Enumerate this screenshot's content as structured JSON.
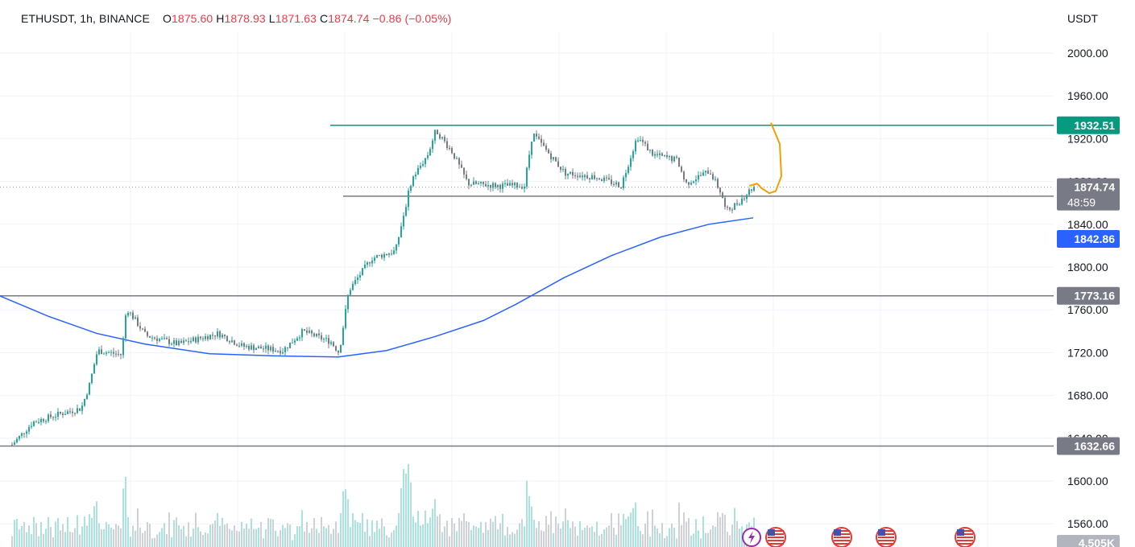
{
  "header": {
    "symbol": "ETHUSDT",
    "interval": "1h",
    "exchange": "BINANCE",
    "open_label": "O",
    "open": "1875.60",
    "high_label": "H",
    "high": "1878.93",
    "low_label": "L",
    "low": "1871.63",
    "close_label": "C",
    "close": "1874.74",
    "change": "−0.86 (−0.05%)"
  },
  "axis": {
    "currency": "USDT"
  },
  "chart_data": {
    "type": "candlestick",
    "price_axis": {
      "ylim": [
        1540,
        2020
      ],
      "ticks": [
        "2000.00",
        "1960.00",
        "1920.00",
        "1880.00",
        "1840.00",
        "1800.00",
        "1760.00",
        "1720.00",
        "1680.00",
        "1640.00",
        "1600.00",
        "1560.00"
      ]
    },
    "horizontal_lines": [
      {
        "name": "resistance",
        "price": 1932.51,
        "label": "1932.51",
        "color": "#089981"
      },
      {
        "name": "range-support",
        "price": 1866.28,
        "label": "1866.28",
        "color": "#787b86"
      },
      {
        "name": "mid-support",
        "price": 1773.16,
        "label": "1773.16",
        "color": "#787b86"
      },
      {
        "name": "base-support",
        "price": 1632.66,
        "label": "1632.66",
        "color": "#787b86"
      }
    ],
    "last_price": {
      "price": 1874.74,
      "label": "1874.74",
      "countdown": "48:59",
      "color": "#787b86"
    },
    "moving_average": {
      "label": "1842.86",
      "color": "#2962ff",
      "points": [
        [
          0,
          1773
        ],
        [
          60,
          1754
        ],
        [
          120,
          1738
        ],
        [
          180,
          1728
        ],
        [
          260,
          1719
        ],
        [
          340,
          1717
        ],
        [
          420,
          1716
        ],
        [
          480,
          1722
        ],
        [
          540,
          1735
        ],
        [
          600,
          1750
        ],
        [
          640,
          1765
        ],
        [
          700,
          1790
        ],
        [
          760,
          1811
        ],
        [
          820,
          1828
        ],
        [
          880,
          1840
        ],
        [
          935,
          1846
        ]
      ]
    },
    "price_path": [
      [
        14,
        1634
      ],
      [
        40,
        1655
      ],
      [
        70,
        1662
      ],
      [
        100,
        1668
      ],
      [
        110,
        1690
      ],
      [
        120,
        1722
      ],
      [
        150,
        1718
      ],
      [
        156,
        1762
      ],
      [
        180,
        1736
      ],
      [
        220,
        1728
      ],
      [
        270,
        1738
      ],
      [
        300,
        1726
      ],
      [
        350,
        1722
      ],
      [
        375,
        1740
      ],
      [
        410,
        1730
      ],
      [
        420,
        1720
      ],
      [
        432,
        1778
      ],
      [
        460,
        1808
      ],
      [
        490,
        1815
      ],
      [
        510,
        1882
      ],
      [
        530,
        1905
      ],
      [
        540,
        1928
      ],
      [
        560,
        1908
      ],
      [
        580,
        1878
      ],
      [
        620,
        1876
      ],
      [
        650,
        1876
      ],
      [
        660,
        1925
      ],
      [
        700,
        1888
      ],
      [
        740,
        1884
      ],
      [
        770,
        1876
      ],
      [
        790,
        1922
      ],
      [
        810,
        1905
      ],
      [
        840,
        1900
      ],
      [
        850,
        1878
      ],
      [
        880,
        1890
      ],
      [
        895,
        1868
      ],
      [
        900,
        1852
      ],
      [
        915,
        1860
      ],
      [
        930,
        1872
      ],
      [
        935,
        1875
      ]
    ],
    "volume": {
      "label": "4.505K"
    },
    "projection": {
      "color": "#f59f00",
      "points": [
        [
          930,
          1876
        ],
        [
          940,
          1878
        ],
        [
          945,
          1874
        ],
        [
          955,
          1869
        ],
        [
          963,
          1871
        ],
        [
          970,
          1885
        ],
        [
          968,
          1915
        ],
        [
          957,
          1935
        ]
      ]
    },
    "event_markers": [
      {
        "x": 933,
        "icon": "lightning-icon"
      },
      {
        "x": 963,
        "icon": "us-flag-icon"
      },
      {
        "x": 1045,
        "icon": "us-flag-icon"
      },
      {
        "x": 1100,
        "icon": "us-flag-icon"
      },
      {
        "x": 1198,
        "icon": "us-flag-icon"
      }
    ]
  },
  "colors": {
    "up": "#26a69a",
    "down": "#787b86",
    "volume_up": "#a8e3e0",
    "volume_down": "#cfd1d8",
    "grid": "#f0f3fa"
  }
}
